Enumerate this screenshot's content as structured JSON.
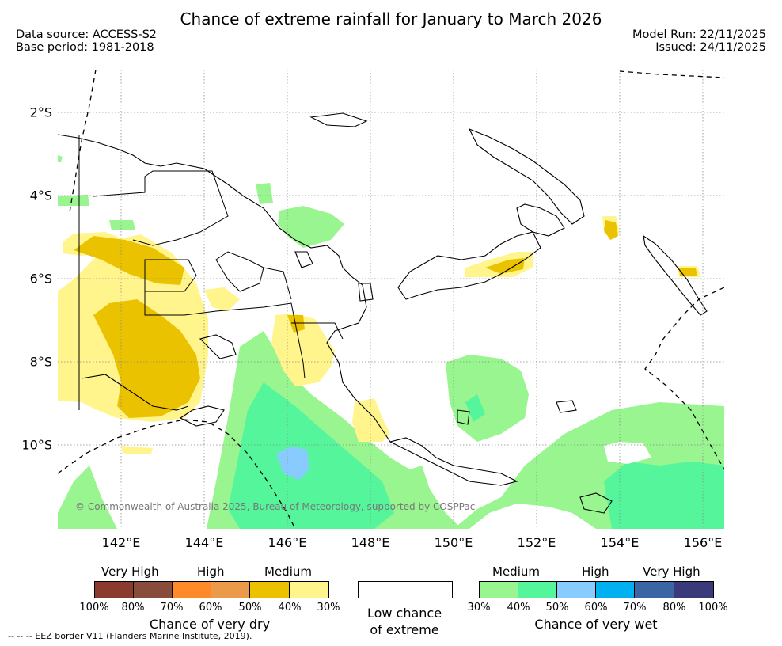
{
  "title": "Chance of extreme rainfall for January to March 2026",
  "meta": {
    "data_source": "Data source: ACCESS-S2",
    "base_period": "Base period: 1981-2018",
    "model_run": "Model Run: 22/11/2025",
    "issued": "Issued: 24/11/2025"
  },
  "map": {
    "lat_labels": [
      "2°S",
      "4°S",
      "6°S",
      "8°S",
      "10°S"
    ],
    "lon_labels": [
      "142°E",
      "144°E",
      "146°E",
      "148°E",
      "150°E",
      "152°E",
      "154°E",
      "156°E"
    ],
    "copyright": "© Commonwealth of Australia 2025, Bureau of Meteorology, supported by COSPPac"
  },
  "legend": {
    "dry": {
      "levels": [
        "Very High",
        "High",
        "Medium"
      ],
      "colors": [
        "#8b3a2e",
        "#8a4c3a",
        "#ff8a2a",
        "#eb9a4a",
        "#eac200",
        "#fff58c"
      ],
      "ticks": [
        "100%",
        "80%",
        "70%",
        "60%",
        "50%",
        "40%",
        "30%"
      ],
      "caption": "Chance of very dry"
    },
    "low": {
      "caption_line1": "Low chance",
      "caption_line2": "of extreme"
    },
    "wet": {
      "levels": [
        "Medium",
        "High",
        "Very High"
      ],
      "colors": [
        "#99f58f",
        "#55f59c",
        "#88ccff",
        "#00b0f0",
        "#3a66a5",
        "#3a3a7a"
      ],
      "ticks": [
        "30%",
        "40%",
        "50%",
        "60%",
        "70%",
        "80%",
        "100%"
      ],
      "caption": "Chance of very wet"
    }
  },
  "footnote": "--  --  -- EEZ border V11 (Flanders Marine Institute, 2019)."
}
